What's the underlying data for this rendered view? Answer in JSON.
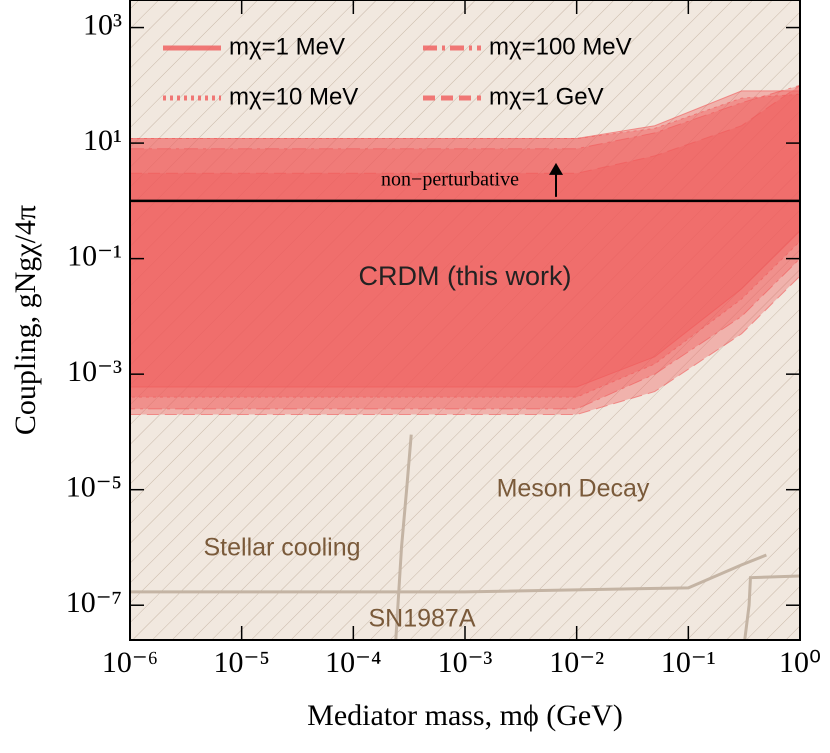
{
  "chart_data": {
    "type": "area",
    "xlabel": "Mediator mass, mϕ (GeV)",
    "ylabel": "Coupling, gNgχ/4π",
    "log_x": true,
    "log_y": true,
    "xlim": [
      1e-06,
      1
    ],
    "ylim": [
      2.5e-08,
      3000
    ],
    "xticks": [
      {
        "value": 1e-06,
        "label": "10⁻⁶"
      },
      {
        "value": 1e-05,
        "label": "10⁻⁵"
      },
      {
        "value": 0.0001,
        "label": "10⁻⁴"
      },
      {
        "value": 0.001,
        "label": "10⁻³"
      },
      {
        "value": 0.01,
        "label": "10⁻²"
      },
      {
        "value": 0.1,
        "label": "10⁻¹"
      },
      {
        "value": 1,
        "label": "10⁰"
      }
    ],
    "yticks": [
      {
        "value": 1e-07,
        "label": "10⁻⁷"
      },
      {
        "value": 1e-05,
        "label": "10⁻⁵"
      },
      {
        "value": 0.001,
        "label": "10⁻³"
      },
      {
        "value": 0.1,
        "label": "10⁻¹"
      },
      {
        "value": 10,
        "label": "10¹"
      },
      {
        "value": 1000,
        "label": "10³"
      }
    ],
    "fill_opacity": 0.38,
    "series": [
      {
        "name": "mχ=1 MeV",
        "color": "#f05a5a",
        "dash": "solid",
        "x": [
          1e-06,
          0.01,
          0.05,
          0.3,
          1
        ],
        "upper": [
          12,
          12,
          20,
          80,
          80
        ],
        "lower": [
          0.0006,
          0.0006,
          0.002,
          0.03,
          0.3
        ]
      },
      {
        "name": "mχ=100 MeV",
        "color": "#f05a5a",
        "dash": "dashdot",
        "x": [
          1e-06,
          0.01,
          0.05,
          0.3,
          1
        ],
        "upper": [
          8,
          8,
          15,
          50,
          100
        ],
        "lower": [
          0.00025,
          0.00025,
          0.001,
          0.01,
          0.1
        ]
      },
      {
        "name": "mχ=10 MeV",
        "color": "#f05a5a",
        "dash": "dotted",
        "x": [
          1e-06,
          0.01,
          0.05,
          0.3,
          1
        ],
        "upper": [
          12,
          12,
          18,
          60,
          70
        ],
        "lower": [
          0.0004,
          0.0004,
          0.0015,
          0.02,
          0.2
        ]
      },
      {
        "name": "mχ=1 GeV",
        "color": "#f05a5a",
        "dash": "dashed",
        "x": [
          1e-06,
          0.01,
          0.05,
          0.3,
          1
        ],
        "upper": [
          3,
          3,
          6,
          20,
          100
        ],
        "lower": [
          0.0002,
          0.0002,
          0.0005,
          0.005,
          0.05
        ]
      }
    ],
    "hline": {
      "value": 1,
      "label": "non−perturbative"
    },
    "curves": [
      {
        "x": [
          0.00024,
          0.00027,
          0.0003,
          0.00033
        ],
        "values": [
          2.5e-08,
          1e-06,
          1e-05,
          9e-05
        ]
      },
      {
        "x": [
          1e-06,
          0.001,
          0.1,
          0.3,
          0.5
        ],
        "values": [
          1.7e-07,
          1.7e-07,
          2e-07,
          5e-07,
          7.4e-07
        ]
      },
      {
        "x": [
          0.32,
          0.35,
          0.36,
          1
        ],
        "values": [
          2.5e-08,
          1e-07,
          3e-07,
          3.2e-07
        ]
      }
    ],
    "annotations": [
      "CRDM (this work)",
      "Meson Decay",
      "Stellar cooling",
      "SN1987A"
    ]
  }
}
